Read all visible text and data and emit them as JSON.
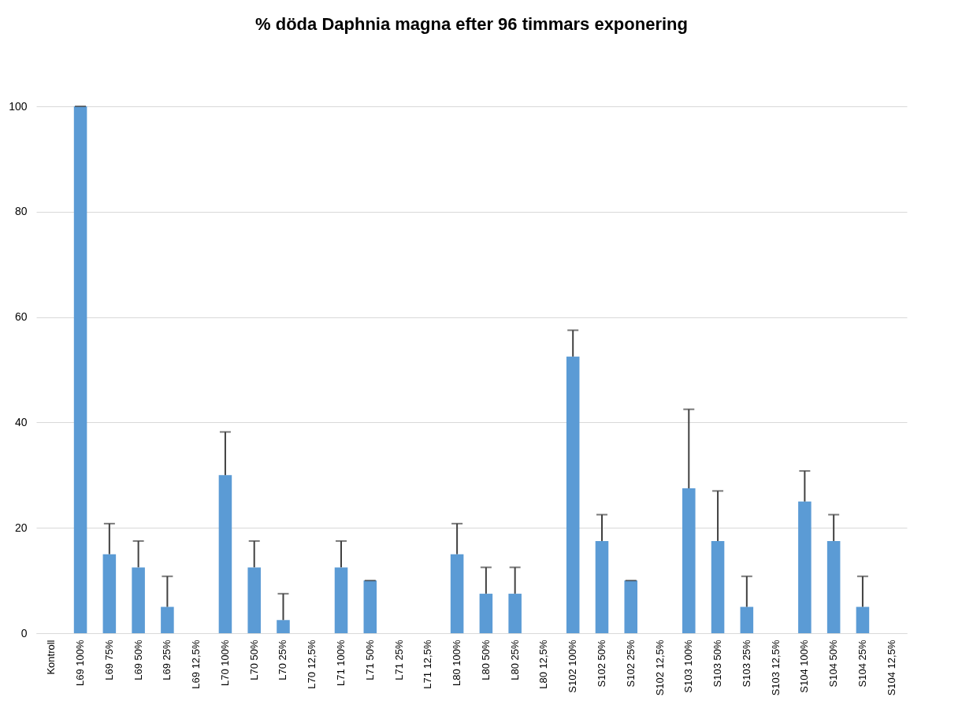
{
  "chart_data": {
    "type": "bar",
    "title": "% döda Daphnia magna efter 96 timmars exponering",
    "categories": [
      "Kontroll",
      "L69 100%",
      "L69 75%",
      "L69 50%",
      "L69 25%",
      "L69 12,5%",
      "L70 100%",
      "L70 50%",
      "L70 25%",
      "L70 12,5%",
      "L71 100%",
      "L71 50%",
      "L71 25%",
      "L71 12,5%",
      "L80 100%",
      "L80 50%",
      "L80 25%",
      "L80 12,5%",
      "S102 100%",
      "S102 50%",
      "S102 25%",
      "S102 12,5%",
      "S103 100%",
      "S103 50%",
      "S103 25%",
      "S103 12,5%",
      "S104 100%",
      "S104 50%",
      "S104 25%",
      "S104 12,5%"
    ],
    "values": [
      0,
      100,
      15,
      12.5,
      5,
      0,
      30,
      12.5,
      2.5,
      0,
      12.5,
      10,
      0,
      0,
      15,
      7.5,
      7.5,
      0,
      52.5,
      17.5,
      10,
      0,
      27.5,
      17.5,
      5,
      0,
      25,
      17.5,
      5,
      0
    ],
    "errors": [
      null,
      [
        100,
        100
      ],
      [
        15,
        20.8
      ],
      [
        12.5,
        17.5
      ],
      [
        5,
        10.8
      ],
      null,
      [
        30,
        38.2
      ],
      [
        12.5,
        17.5
      ],
      [
        2.5,
        7.5
      ],
      null,
      [
        12.5,
        17.5
      ],
      [
        10,
        10
      ],
      null,
      null,
      [
        15,
        20.8
      ],
      [
        7.5,
        12.5
      ],
      [
        7.5,
        12.5
      ],
      null,
      [
        52.5,
        57.5
      ],
      [
        17.5,
        22.5
      ],
      [
        10,
        10
      ],
      null,
      [
        27.5,
        42.5
      ],
      [
        17.5,
        27
      ],
      [
        5,
        10.8
      ],
      null,
      [
        25,
        30.8
      ],
      [
        17.5,
        22.5
      ],
      [
        5,
        10.8
      ],
      null
    ],
    "color": "#5b9bd5",
    "ylim": [
      0,
      100
    ],
    "yticks": [
      0,
      20,
      40,
      60,
      80,
      100
    ],
    "grid": "y"
  }
}
